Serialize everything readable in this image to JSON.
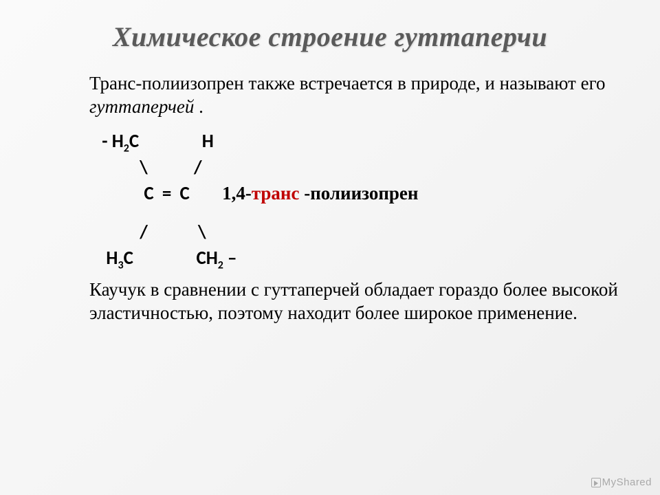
{
  "title": "Химическое строение гуттаперчи",
  "intro": {
    "part1": "Транс-полиизопрен также встречается в природе, и называют его ",
    "part2_italic": "гуттаперчей",
    "part3": " ."
  },
  "formula": {
    "line1_prefix": "   - ",
    "line1_h2c": "H₂C",
    "line1_spacer": "               ",
    "line1_h": "H",
    "line2": "            \\           /",
    "line3_cc": "             C  =  C",
    "line3_spacer": "       ",
    "line3_label_14": "1,4-",
    "line3_label_trans": "транс ",
    "line3_label_poly": "-полиизопрен",
    "line4": "            /            \\",
    "line5_prefix": "    ",
    "line5_h3c": "H₃C",
    "line5_spacer": "               ",
    "line5_ch2": "CH₂ –"
  },
  "conclusion": "Каучук в сравнении с гуттаперчей обладает гораздо более высокой эластичностью, поэтому находит более широкое применение.",
  "watermark": {
    "my": "My",
    "shared": "Shared"
  },
  "style": {
    "title_color": "#5a5a5a",
    "title_fontsize": 40,
    "body_fontsize": 27,
    "red_color": "#c00000",
    "background": "#f5f5f5",
    "text_color": "#000000",
    "sub_fontsize": 16
  }
}
